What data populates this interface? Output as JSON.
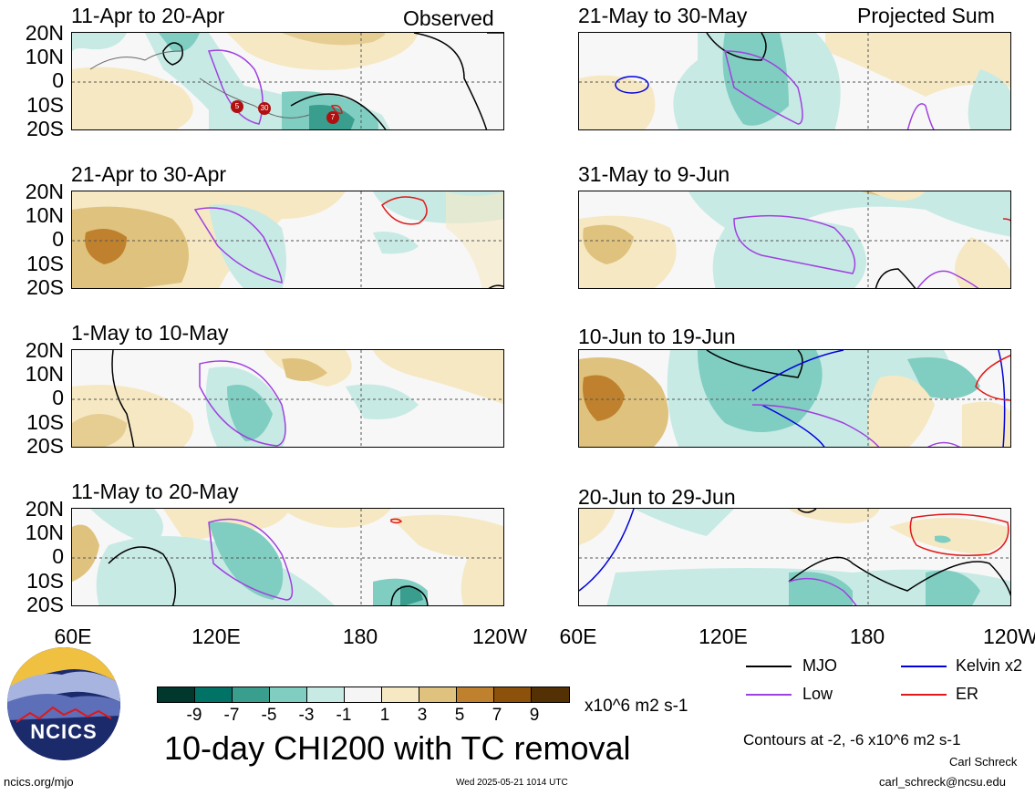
{
  "panels": [
    {
      "id": "p1",
      "title": "11-Apr to 20-Apr",
      "label": "Observed"
    },
    {
      "id": "p2",
      "title": "21-May to 30-May",
      "label": "Projected Sum"
    },
    {
      "id": "p3",
      "title": "21-Apr to 30-Apr",
      "label": ""
    },
    {
      "id": "p4",
      "title": "31-May to 9-Jun",
      "label": ""
    },
    {
      "id": "p5",
      "title": "1-May to 10-May",
      "label": ""
    },
    {
      "id": "p6",
      "title": "10-Jun to 19-Jun",
      "label": ""
    },
    {
      "id": "p7",
      "title": "11-May to 20-May",
      "label": ""
    },
    {
      "id": "p8",
      "title": "20-Jun to 29-Jun",
      "label": ""
    }
  ],
  "lat_labels": [
    "20N",
    "10N",
    "0",
    "10S",
    "20S"
  ],
  "lon_labels": [
    "60E",
    "120E",
    "180",
    "120W"
  ],
  "tc_markers": [
    "5",
    "30",
    "7"
  ],
  "colorbar": {
    "ticks": [
      "-9",
      "-7",
      "-5",
      "-3",
      "-1",
      "1",
      "3",
      "5",
      "7",
      "9"
    ],
    "colors": [
      "#01372c",
      "#017366",
      "#3a9e8f",
      "#80cdc1",
      "#c7eae5",
      "#f5f5f5",
      "#f6e8c3",
      "#dfc27d",
      "#bf812d",
      "#8c510a",
      "#543005"
    ],
    "units": "x10^6 m2 s-1"
  },
  "title": "10-day CHI200 with TC removal",
  "legend": {
    "items": [
      {
        "label": "MJO",
        "color": "#000000"
      },
      {
        "label": "Kelvin x2",
        "color": "#0000dd"
      },
      {
        "label": "Low",
        "color": "#a040e0"
      },
      {
        "label": "ER",
        "color": "#e01818"
      }
    ],
    "contour_note": "Contours at -2, -6 x10^6 m2 s-1"
  },
  "logo": {
    "text": "NCICS"
  },
  "footer": {
    "url": "ncics.org/mjo",
    "timestamp": "Wed 2025-05-21 1014 UTC",
    "author": "Carl Schreck",
    "email": "carl_schreck@ncsu.edu"
  }
}
